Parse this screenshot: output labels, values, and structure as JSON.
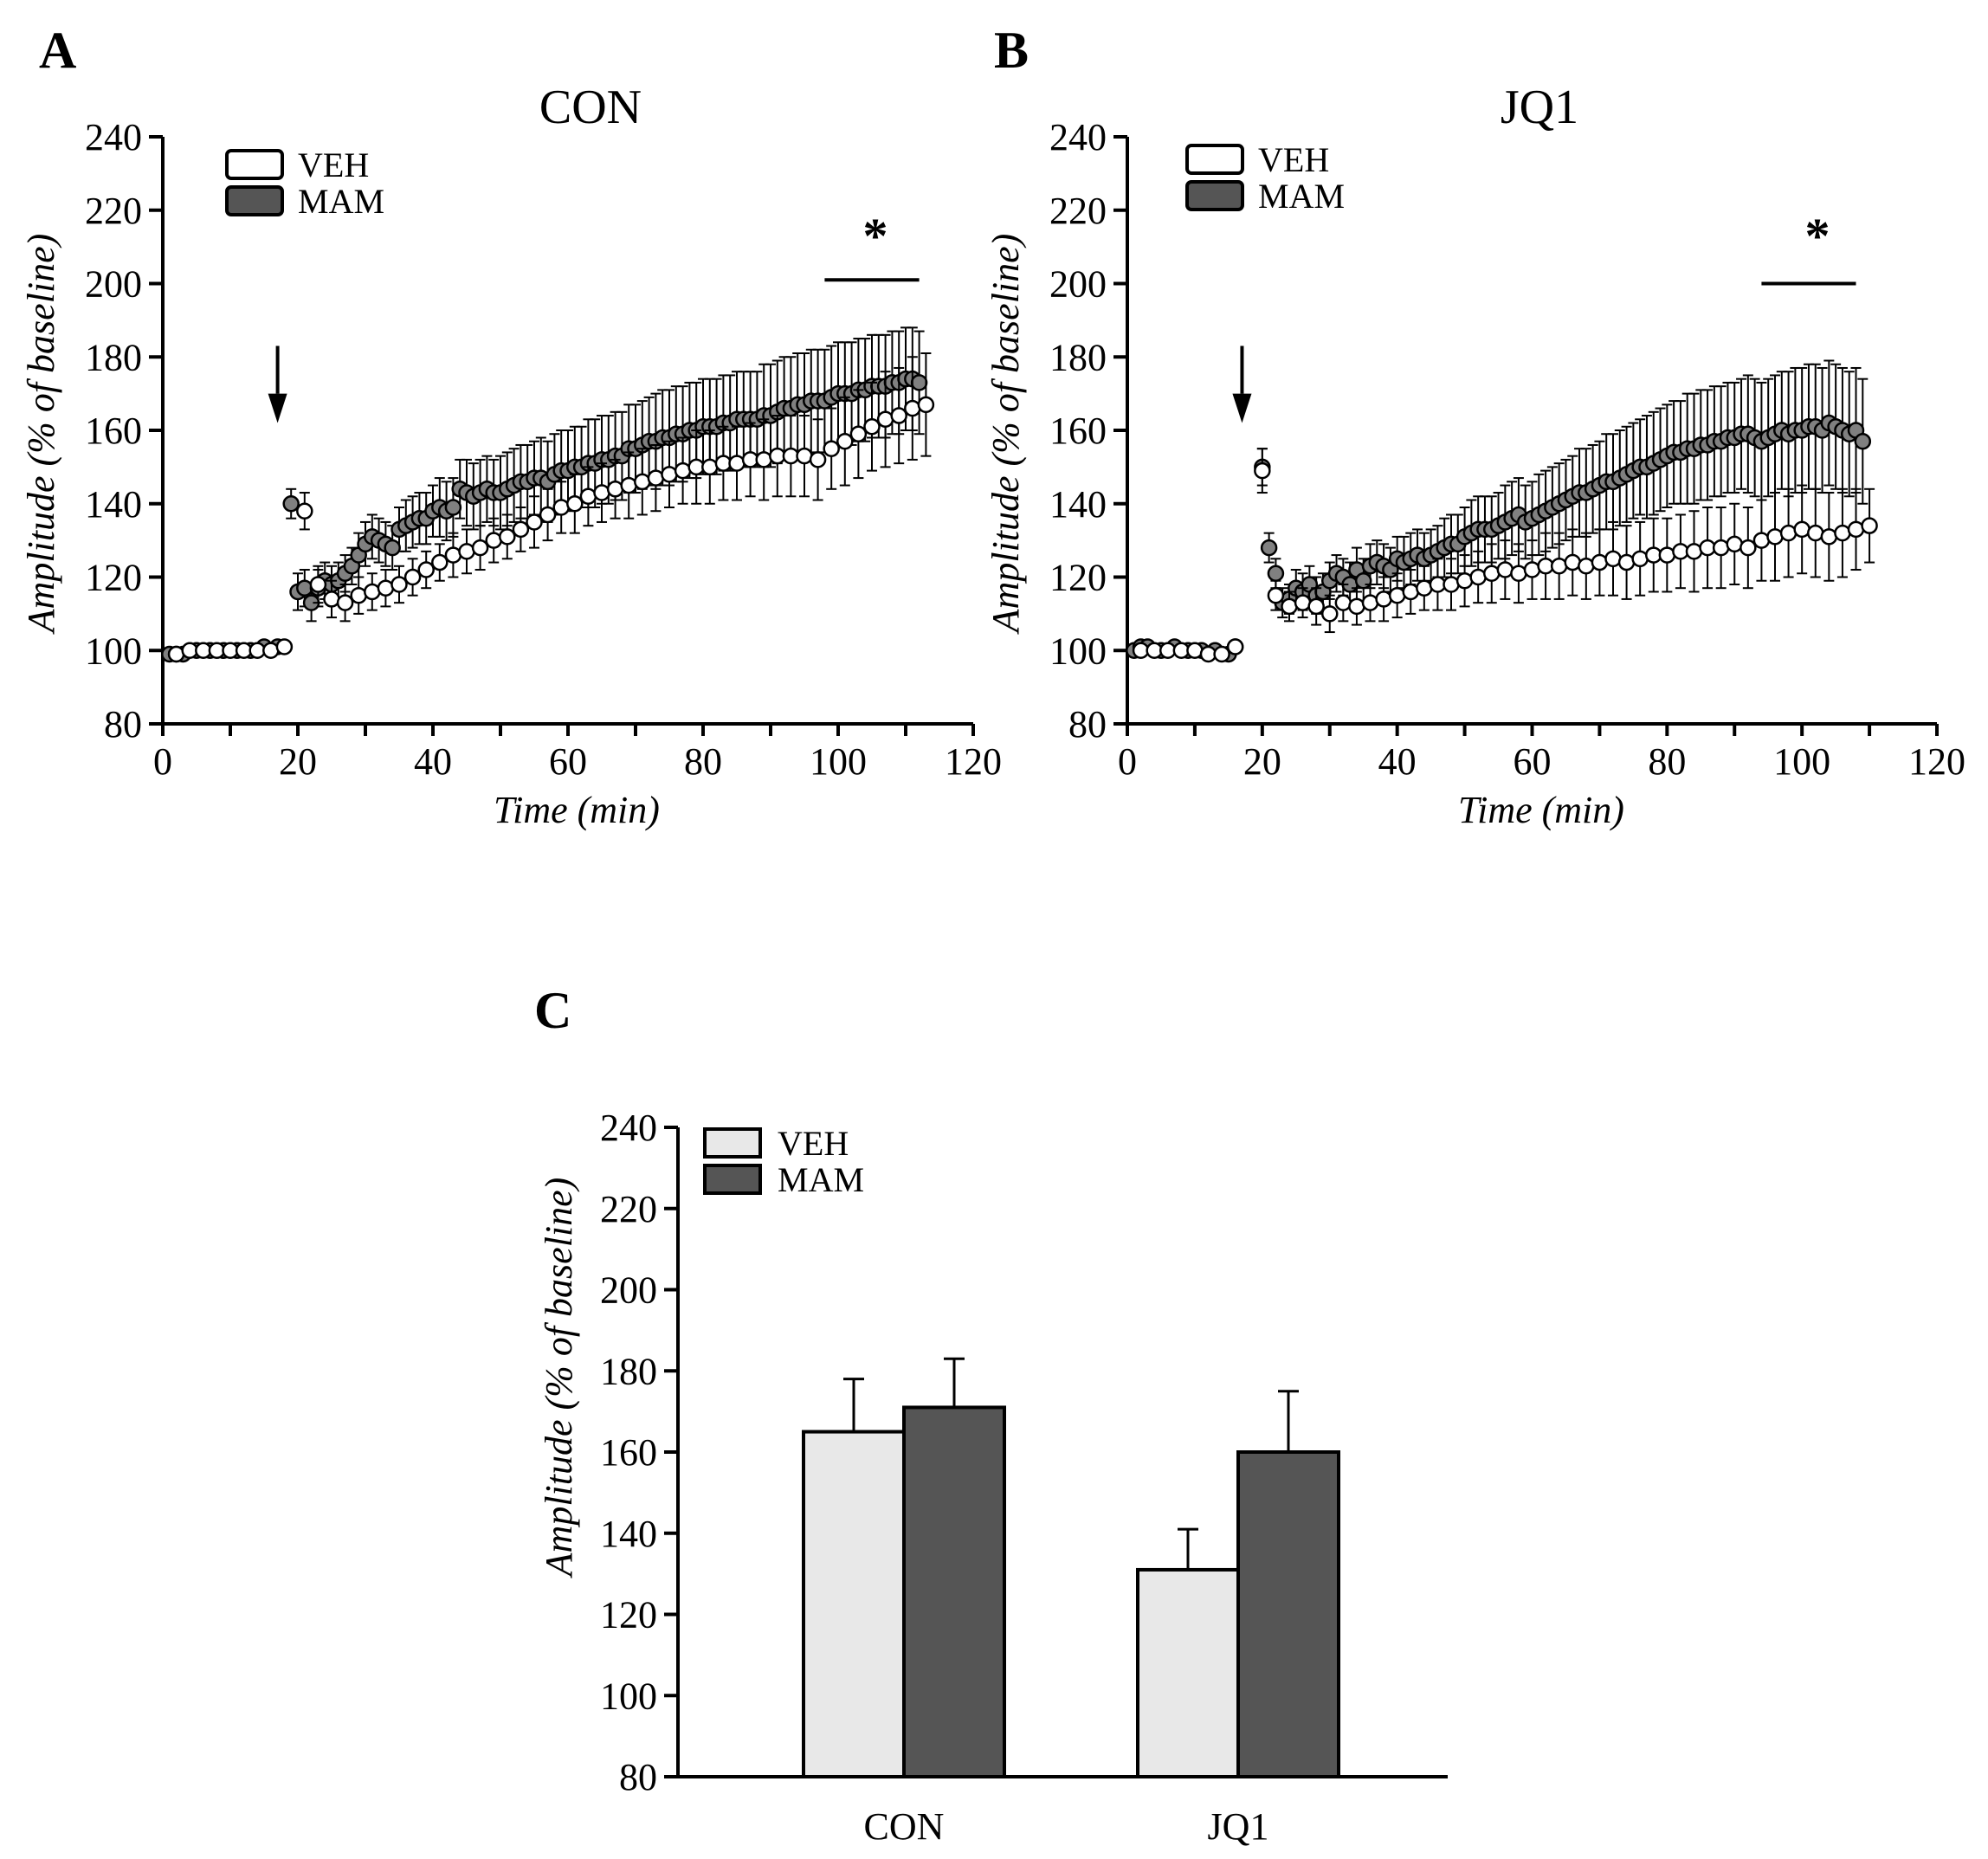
{
  "colors": {
    "veh_marker": "#ffffff",
    "mam_marker": "#808080",
    "veh_bar": "#e8e8e8",
    "mam_bar": "#555555",
    "axis": "#000000"
  },
  "chart_data": [
    {
      "panel": "A",
      "type": "scatter",
      "title": "CON",
      "xlabel": "Time (min)",
      "ylabel": "Amplitude (% of baseline)",
      "xlim": [
        0,
        120
      ],
      "ylim": [
        80,
        240
      ],
      "xticks": [
        "0",
        "20",
        "40",
        "60",
        "80",
        "100",
        "120"
      ],
      "yticks": [
        "80",
        "100",
        "120",
        "140",
        "160",
        "180",
        "200",
        "220",
        "240"
      ],
      "legend": {
        "position": "top-left",
        "entries": [
          "VEH",
          "MAM"
        ]
      },
      "stimulus_arrow_x": 17,
      "significance": {
        "label": "*",
        "x_start": 98,
        "x_end": 112,
        "y": 201
      },
      "series": [
        {
          "name": "MAM",
          "x": [
            1,
            2,
            3,
            5,
            7,
            9,
            11,
            13,
            15,
            17,
            19,
            20,
            21,
            22,
            23,
            24,
            25,
            26,
            27,
            28,
            29,
            30,
            31,
            32,
            33,
            34,
            35,
            36,
            37,
            38,
            39,
            40,
            41,
            42,
            43,
            44,
            45,
            46,
            47,
            48,
            49,
            50,
            51,
            52,
            53,
            54,
            55,
            56,
            57,
            58,
            59,
            60,
            61,
            62,
            63,
            64,
            65,
            66,
            67,
            68,
            69,
            70,
            71,
            72,
            73,
            74,
            75,
            76,
            77,
            78,
            79,
            80,
            81,
            82,
            83,
            84,
            85,
            86,
            87,
            88,
            89,
            90,
            91,
            92,
            93,
            94,
            95,
            96,
            97,
            98,
            99,
            100,
            101,
            102,
            103,
            104,
            105,
            106,
            107,
            108,
            109,
            110,
            111,
            112
          ],
          "y": [
            99,
            99,
            99,
            100,
            100,
            100,
            100,
            100,
            101,
            101,
            140,
            116,
            117,
            113,
            117,
            119,
            118,
            119,
            121,
            123,
            126,
            129,
            131,
            130,
            129,
            128,
            133,
            134,
            135,
            136,
            136,
            138,
            139,
            138,
            139,
            144,
            143,
            142,
            143,
            144,
            143,
            143,
            144,
            145,
            146,
            146,
            147,
            147,
            146,
            148,
            149,
            149,
            150,
            150,
            151,
            151,
            152,
            152,
            153,
            153,
            155,
            155,
            156,
            157,
            157,
            158,
            158,
            159,
            159,
            160,
            160,
            161,
            161,
            161,
            162,
            162,
            163,
            163,
            163,
            163,
            164,
            164,
            165,
            166,
            166,
            167,
            167,
            168,
            168,
            168,
            169,
            170,
            170,
            170,
            171,
            171,
            172,
            172,
            172,
            173,
            173,
            174,
            174,
            173
          ],
          "err": [
            1,
            1,
            1,
            1,
            1,
            1,
            1,
            1,
            1,
            1,
            4,
            5,
            5,
            5,
            5,
            5,
            5,
            5,
            5,
            5,
            6,
            6,
            6,
            6,
            6,
            6,
            6,
            7,
            7,
            7,
            7,
            7,
            8,
            8,
            8,
            8,
            9,
            9,
            9,
            9,
            9,
            10,
            10,
            10,
            10,
            10,
            10,
            11,
            11,
            11,
            11,
            11,
            11,
            11,
            12,
            12,
            12,
            12,
            12,
            12,
            12,
            12,
            12,
            12,
            13,
            13,
            13,
            13,
            13,
            13,
            13,
            13,
            13,
            13,
            13,
            13,
            13,
            13,
            13,
            13,
            14,
            14,
            14,
            14,
            14,
            14,
            14,
            14,
            14,
            14,
            14,
            14,
            14,
            14,
            14,
            14,
            14,
            14,
            14,
            14,
            14,
            14,
            14,
            14
          ]
        },
        {
          "name": "VEH",
          "x": [
            2,
            4,
            6,
            8,
            10,
            12,
            14,
            16,
            18,
            21,
            23,
            25,
            27,
            29,
            31,
            33,
            35,
            37,
            39,
            41,
            43,
            45,
            47,
            49,
            51,
            53,
            55,
            57,
            59,
            61,
            63,
            65,
            67,
            69,
            71,
            73,
            75,
            77,
            79,
            81,
            83,
            85,
            87,
            89,
            91,
            93,
            95,
            97,
            99,
            101,
            103,
            105,
            107,
            109,
            111,
            113
          ],
          "y": [
            99,
            100,
            100,
            100,
            100,
            100,
            100,
            100,
            101,
            138,
            118,
            114,
            113,
            115,
            116,
            117,
            118,
            120,
            122,
            124,
            126,
            127,
            128,
            130,
            131,
            133,
            135,
            137,
            139,
            140,
            142,
            143,
            144,
            145,
            146,
            147,
            148,
            149,
            150,
            150,
            151,
            151,
            152,
            152,
            153,
            153,
            153,
            152,
            155,
            157,
            159,
            161,
            163,
            164,
            166,
            167
          ],
          "err": [
            1,
            1,
            1,
            1,
            1,
            1,
            1,
            1,
            1,
            5,
            5,
            5,
            5,
            5,
            5,
            5,
            5,
            5,
            5,
            5,
            6,
            6,
            6,
            6,
            6,
            6,
            7,
            7,
            7,
            8,
            8,
            8,
            8,
            9,
            9,
            9,
            9,
            9,
            10,
            10,
            10,
            10,
            10,
            11,
            11,
            11,
            11,
            11,
            11,
            12,
            12,
            12,
            13,
            13,
            14,
            14
          ]
        }
      ]
    },
    {
      "panel": "B",
      "type": "scatter",
      "title": "JQ1",
      "xlabel": "Time (min)",
      "ylabel": "Amplitude (% of baseline)",
      "xlim": [
        0,
        120
      ],
      "ylim": [
        80,
        240
      ],
      "xticks": [
        "0",
        "20",
        "40",
        "60",
        "80",
        "100",
        "120"
      ],
      "yticks": [
        "80",
        "100",
        "120",
        "140",
        "160",
        "180",
        "200",
        "220",
        "240"
      ],
      "legend": {
        "position": "top-left",
        "entries": [
          "VEH",
          "MAM"
        ]
      },
      "stimulus_arrow_x": 17,
      "significance": {
        "label": "*",
        "x_start": 94,
        "x_end": 108,
        "y": 200
      },
      "series": [
        {
          "name": "MAM",
          "x": [
            1,
            2,
            3,
            5,
            7,
            9,
            11,
            13,
            15,
            16,
            20,
            21,
            22,
            23,
            24,
            25,
            26,
            27,
            28,
            29,
            30,
            31,
            32,
            33,
            34,
            35,
            36,
            37,
            38,
            39,
            40,
            41,
            42,
            43,
            44,
            45,
            46,
            47,
            48,
            49,
            50,
            51,
            52,
            53,
            54,
            55,
            56,
            57,
            58,
            59,
            60,
            61,
            62,
            63,
            64,
            65,
            66,
            67,
            68,
            69,
            70,
            71,
            72,
            73,
            74,
            75,
            76,
            77,
            78,
            79,
            80,
            81,
            82,
            83,
            84,
            85,
            86,
            87,
            88,
            89,
            90,
            91,
            92,
            93,
            94,
            95,
            96,
            97,
            98,
            99,
            100,
            101,
            102,
            103,
            104,
            105,
            106,
            107,
            108,
            109
          ],
          "y": [
            100,
            101,
            101,
            100,
            101,
            100,
            100,
            100,
            99,
            101,
            150,
            128,
            121,
            113,
            114,
            117,
            116,
            118,
            115,
            116,
            119,
            121,
            120,
            118,
            122,
            119,
            123,
            124,
            123,
            122,
            125,
            124,
            125,
            126,
            125,
            126,
            127,
            128,
            129,
            129,
            131,
            132,
            133,
            133,
            133,
            134,
            135,
            136,
            137,
            135,
            136,
            137,
            138,
            139,
            140,
            141,
            142,
            143,
            143,
            144,
            145,
            146,
            146,
            147,
            148,
            149,
            150,
            150,
            151,
            152,
            153,
            154,
            154,
            155,
            155,
            156,
            156,
            157,
            157,
            158,
            158,
            159,
            159,
            158,
            157,
            158,
            159,
            160,
            159,
            160,
            160,
            161,
            161,
            160,
            162,
            161,
            160,
            159,
            160,
            157
          ],
          "err": [
            1,
            1,
            1,
            1,
            1,
            1,
            1,
            1,
            1,
            1,
            5,
            4,
            4,
            4,
            4,
            5,
            5,
            5,
            5,
            5,
            5,
            5,
            5,
            6,
            6,
            6,
            6,
            6,
            6,
            6,
            6,
            7,
            7,
            7,
            7,
            7,
            7,
            8,
            8,
            8,
            8,
            9,
            9,
            9,
            9,
            9,
            10,
            10,
            10,
            10,
            10,
            11,
            11,
            11,
            11,
            11,
            11,
            12,
            12,
            12,
            12,
            13,
            13,
            13,
            13,
            13,
            13,
            14,
            14,
            14,
            14,
            14,
            14,
            15,
            15,
            15,
            15,
            15,
            15,
            15,
            15,
            15,
            16,
            16,
            16,
            16,
            16,
            16,
            17,
            17,
            17,
            17,
            17,
            17,
            17,
            17,
            17,
            17,
            17,
            17
          ]
        },
        {
          "name": "VEH",
          "x": [
            2,
            4,
            6,
            8,
            10,
            12,
            14,
            16,
            20,
            22,
            24,
            26,
            28,
            30,
            32,
            34,
            36,
            38,
            40,
            42,
            44,
            46,
            48,
            50,
            52,
            54,
            56,
            58,
            60,
            62,
            64,
            66,
            68,
            70,
            72,
            74,
            76,
            78,
            80,
            82,
            84,
            86,
            88,
            90,
            92,
            94,
            96,
            98,
            100,
            102,
            104,
            106,
            108,
            110
          ],
          "y": [
            100,
            100,
            100,
            100,
            100,
            99,
            99,
            101,
            149,
            115,
            112,
            113,
            112,
            110,
            113,
            112,
            113,
            114,
            115,
            116,
            117,
            118,
            118,
            119,
            120,
            121,
            122,
            121,
            122,
            123,
            123,
            124,
            123,
            124,
            125,
            124,
            125,
            126,
            126,
            127,
            127,
            128,
            128,
            129,
            128,
            130,
            131,
            132,
            133,
            132,
            131,
            132,
            133,
            134
          ],
          "err": [
            1,
            1,
            1,
            1,
            1,
            1,
            1,
            1,
            6,
            4,
            4,
            4,
            5,
            5,
            5,
            5,
            5,
            6,
            6,
            6,
            6,
            7,
            7,
            7,
            7,
            8,
            8,
            8,
            8,
            9,
            9,
            9,
            9,
            9,
            10,
            10,
            10,
            10,
            10,
            10,
            11,
            11,
            11,
            11,
            11,
            11,
            12,
            12,
            12,
            12,
            12,
            12,
            11,
            10
          ]
        }
      ]
    },
    {
      "panel": "C",
      "type": "bar",
      "title": "",
      "xlabel": "",
      "ylabel": "Amplitude (% of baseline)",
      "ylim": [
        80,
        240
      ],
      "yticks": [
        "80",
        "100",
        "120",
        "140",
        "160",
        "180",
        "200",
        "220",
        "240"
      ],
      "categories": [
        "CON",
        "JQ1"
      ],
      "legend": {
        "position": "top-left",
        "entries": [
          "VEH",
          "MAM"
        ]
      },
      "series": [
        {
          "name": "VEH",
          "values": [
            165,
            131
          ],
          "err": [
            13,
            10
          ]
        },
        {
          "name": "MAM",
          "values": [
            171,
            160
          ],
          "err": [
            12,
            15
          ]
        }
      ]
    }
  ]
}
